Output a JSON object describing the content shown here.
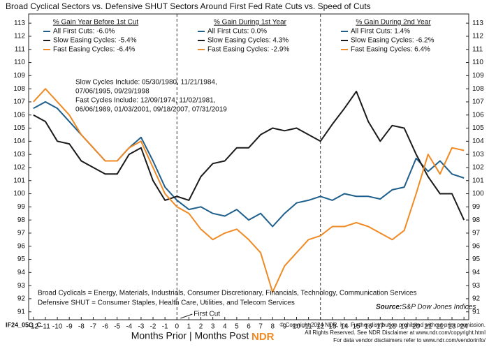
{
  "chart_data": {
    "type": "line",
    "title": "Broad Cyclical Sectors vs. Defensive SHUT Sectors Around First Fed Rate Cuts vs. Speed of Cuts",
    "x": [
      -12,
      -11,
      -10,
      -9,
      -8,
      -7,
      -6,
      -5,
      -4,
      -3,
      -2,
      -1,
      0,
      1,
      2,
      3,
      4,
      5,
      6,
      7,
      8,
      9,
      10,
      11,
      12,
      13,
      14,
      15,
      16,
      17,
      18,
      19,
      20,
      21,
      22,
      23,
      24
    ],
    "series": [
      {
        "color": "#1f5f8b",
        "values": [
          106.5,
          107,
          106.5,
          105.5,
          104.5,
          103.5,
          102.5,
          102.5,
          103.5,
          104.3,
          102.5,
          100.5,
          99.5,
          98.8,
          99,
          98.5,
          98.3,
          98.8,
          98,
          98.5,
          97.5,
          98.5,
          99.3,
          99.5,
          99.8,
          99.5,
          100,
          99.8,
          99.8,
          99.6,
          100.3,
          100.5,
          102.7,
          101.7,
          102.5,
          101.5,
          101.2
        ]
      },
      {
        "color": "#1a1a1a",
        "values": [
          106,
          105.5,
          104,
          103.8,
          102.5,
          102,
          101.5,
          101.5,
          103,
          103.5,
          101,
          99.5,
          99.8,
          99.5,
          101.3,
          102.3,
          102.5,
          103.5,
          103.5,
          104.5,
          105,
          104.8,
          105,
          104.5,
          104,
          105.3,
          106.5,
          107.8,
          105.5,
          104,
          105.2,
          105,
          103,
          101.3,
          100,
          100,
          98
        ]
      },
      {
        "color": "#f08a24",
        "values": [
          107,
          108,
          107,
          106,
          104.5,
          103.5,
          102.5,
          102.5,
          103.5,
          104,
          102,
          100,
          99,
          98.5,
          97.3,
          96.5,
          97,
          97.3,
          96.5,
          95.5,
          92.5,
          94.5,
          95.5,
          96.5,
          96.8,
          97.5,
          97.5,
          97.8,
          97.5,
          97,
          96.5,
          97.2,
          100,
          103,
          101.5,
          103.5,
          103.3
        ]
      }
    ],
    "xlim": [
      -12.4,
      24.4
    ],
    "xticks": [
      -12,
      -11,
      -10,
      -9,
      -8,
      -7,
      -6,
      -5,
      -4,
      -3,
      -2,
      -1,
      0,
      1,
      2,
      3,
      4,
      5,
      6,
      7,
      8,
      9,
      10,
      11,
      12,
      13,
      14,
      15,
      16,
      17,
      18,
      19,
      20,
      21,
      22,
      23,
      24
    ],
    "ylim": [
      90.4,
      113.7
    ],
    "yticks": [
      91,
      92,
      93,
      94,
      95,
      96,
      97,
      98,
      99,
      100,
      101,
      102,
      103,
      104,
      105,
      106,
      107,
      108,
      109,
      110,
      111,
      112,
      113
    ],
    "dividers": [
      0,
      12
    ],
    "panels": [
      {
        "title": "% Gain Year Before 1st Cut",
        "entries": [
          "All First Cuts: -6.0%",
          "Slow Easing Cycles: -5.4%",
          "Fast Easing Cycles: -6.4%"
        ]
      },
      {
        "title": "% Gain During 1st Year",
        "entries": [
          "All First Cuts: 0.0%",
          "Slow Easing Cycles: 4.3%",
          "Fast Easing Cycles: -2.9%"
        ]
      },
      {
        "title": "% Gain During 2nd Year",
        "entries": [
          "All First Cuts: 1.4%",
          "Slow Easing Cycles: -6.2%",
          "Fast Easing Cycles: 6.4%"
        ]
      }
    ],
    "notes": [
      [
        "Slow Cycles Include: 05/30/1980, 11/21/1984,",
        "07/06/1995, 09/29/1998"
      ],
      [
        "Fast Cycles Include: 12/09/1974, 11/02/1981,",
        "06/06/1989, 01/03/2001, 09/18/2007, 07/31/2019"
      ]
    ],
    "footnotes": [
      "Broad Cyclicals = Energy, Materials, Industrials, Consumer Discretionary, Financials, Technology, Communication Services",
      "Defensive SHUT = Consumer Staples, Health Care, Utilities, and Telecom Services"
    ],
    "annotation": "First Cut",
    "source_label": "Source:",
    "source": "S&P Dow Jones Indices",
    "xlabel": "Months Prior | Months Post",
    "chart_id": "IF24_05C_C",
    "logo": "NDR",
    "copyright": [
      "© Copyright 2024 NDR, Inc. Further distribution prohibited without prior permission.",
      "All Rights Reserved. See NDR Disclaimer at www.ndr.com/copyright.html",
      "For data vendor disclaimers refer to www.ndr.com/vendorinfo/"
    ]
  }
}
